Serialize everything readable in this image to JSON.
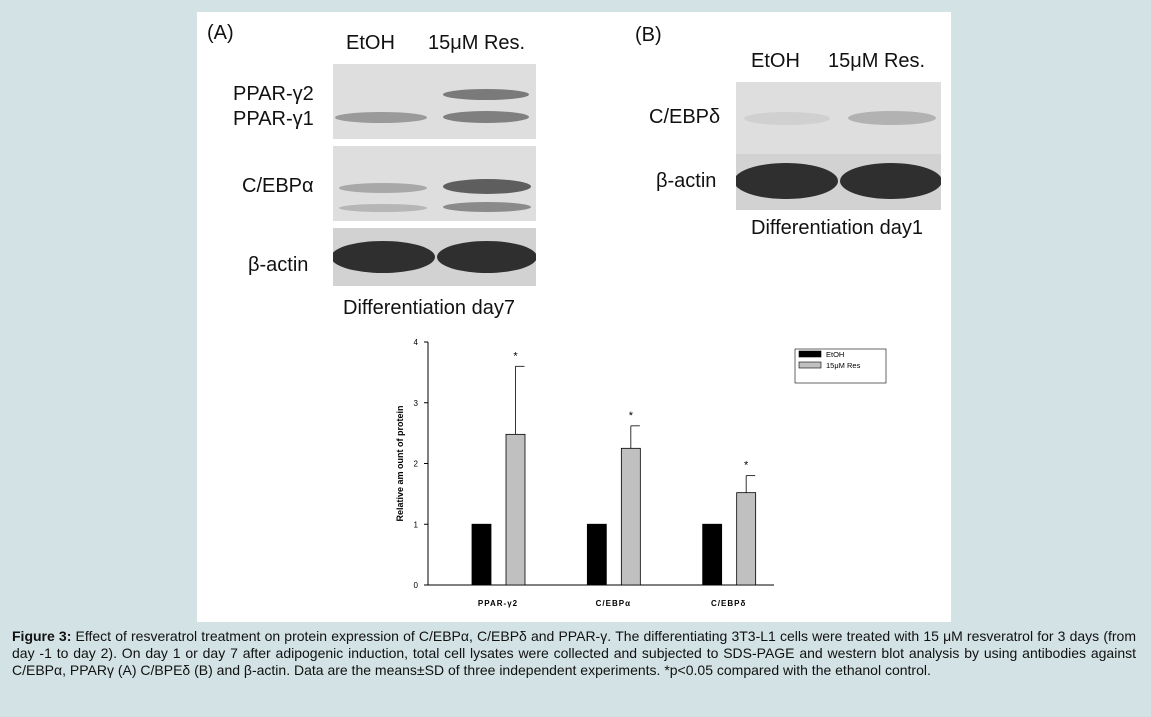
{
  "panel_a": {
    "tag": "(A)",
    "lanes": [
      "EtOH",
      "15μM Res."
    ],
    "rows": {
      "ppar_g2": "PPAR-γ2",
      "ppar_g1": "PPAR-γ1",
      "cebpa": "C/EBPα",
      "actin": "β-actin"
    },
    "footer": "Differentiation day7"
  },
  "panel_b": {
    "tag": "(B)",
    "lanes": [
      "EtOH",
      "15μM Res."
    ],
    "rows": {
      "cebpd": "C/EBPδ",
      "actin": "β-actin"
    },
    "footer": "Differentiation day1"
  },
  "chart_data": {
    "type": "bar",
    "categories": [
      "PPAR-γ2",
      "C/EBPα",
      "C/EBPδ"
    ],
    "series": [
      {
        "name": "EtOH",
        "values": [
          1,
          1,
          1
        ],
        "color": "#000000"
      },
      {
        "name": "15μM Res",
        "values": [
          2.48,
          2.25,
          1.52
        ],
        "errors": [
          1.12,
          0.37,
          0.28
        ],
        "color": "#c0c0c0"
      }
    ],
    "significance": [
      "*",
      "*",
      "*"
    ],
    "ylabel": "Relative am ount of protein",
    "xlabel": "",
    "ylim": [
      0,
      4
    ],
    "yticks": [
      0,
      1,
      2,
      3,
      4
    ],
    "legend_position": "top-right",
    "grid": false
  },
  "caption": {
    "label": "Figure 3:",
    "text": " Effect of resveratrol treatment on protein expression of C/EBPα, C/EBPδ and PPAR-γ. The differentiating 3T3-L1 cells were treated with 15 μM resveratrol for 3 days (from day -1 to day 2). On day 1 or day 7 after adipogenic induction, total cell lysates were collected and subjected to SDS-PAGE and western blot analysis by using antibodies against C/EBPα, PPARγ (A) C/BPEδ (B) and β-actin. Data are the means±SD of three independent experiments. *p<0.05 compared with the ethanol control."
  }
}
